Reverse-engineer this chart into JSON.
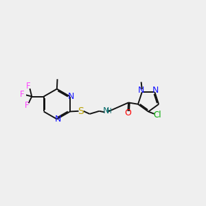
{
  "background": "#efefef",
  "figsize": [
    3.0,
    3.0
  ],
  "dpi": 100,
  "colors": {
    "bond": "#111111",
    "N": "#1414ff",
    "S": "#b8a000",
    "O": "#ff0000",
    "Cl": "#00aa00",
    "F": "#ff44ff",
    "NH_color": "#107070"
  }
}
